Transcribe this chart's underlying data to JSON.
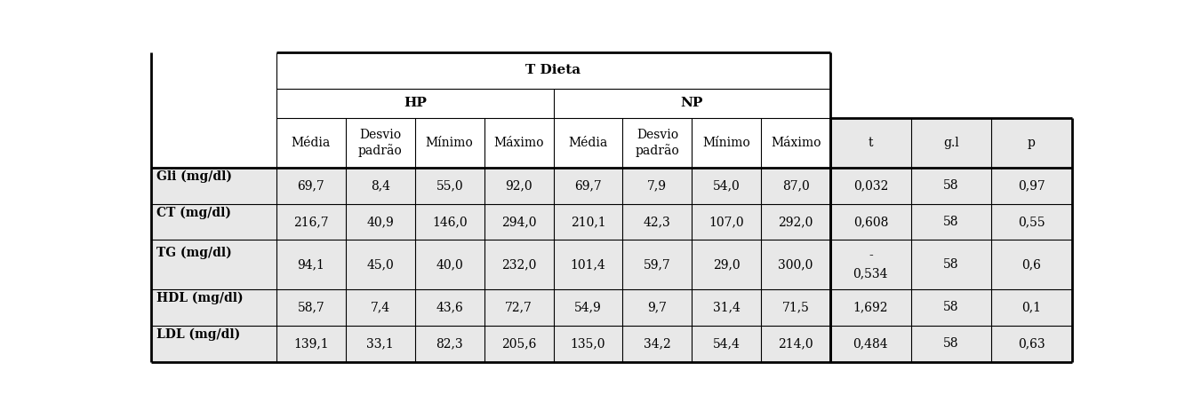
{
  "rows": [
    [
      "Gli (mg/dl)",
      "69,7",
      "8,4",
      "55,0",
      "92,0",
      "69,7",
      "7,9",
      "54,0",
      "87,0",
      "0,032",
      "58",
      "0,97"
    ],
    [
      "CT (mg/dl)",
      "216,7",
      "40,9",
      "146,0",
      "294,0",
      "210,1",
      "42,3",
      "107,0",
      "292,0",
      "0,608",
      "58",
      "0,55"
    ],
    [
      "TG (mg/dl)",
      "94,1",
      "45,0",
      "40,0",
      "232,0",
      "101,4",
      "59,7",
      "29,0",
      "300,0",
      "0,534",
      "58",
      "0,6"
    ],
    [
      "HDL (mg/dl)",
      "58,7",
      "7,4",
      "43,6",
      "72,7",
      "54,9",
      "9,7",
      "31,4",
      "71,5",
      "1,692",
      "58",
      "0,1"
    ],
    [
      "LDL (mg/dl)",
      "139,1",
      "33,1",
      "82,3",
      "205,6",
      "135,0",
      "34,2",
      "54,4",
      "214,0",
      "0,484",
      "58",
      "0,63"
    ]
  ],
  "col_header": [
    "Média",
    "Desvio\npadrão",
    "Mínimo",
    "Máximo",
    "Média",
    "Desvio\npadrão",
    "Mínimo",
    "Máximo",
    "t",
    "g.l",
    "p"
  ],
  "header_hp": "HP",
  "header_np": "NP",
  "header_tdieta": "T Dieta",
  "shade_color": "#e8e8e8",
  "text_color": "#000000",
  "font_size": 10,
  "header_font_size": 11,
  "lw_thick": 2.0,
  "lw_thin": 0.8
}
